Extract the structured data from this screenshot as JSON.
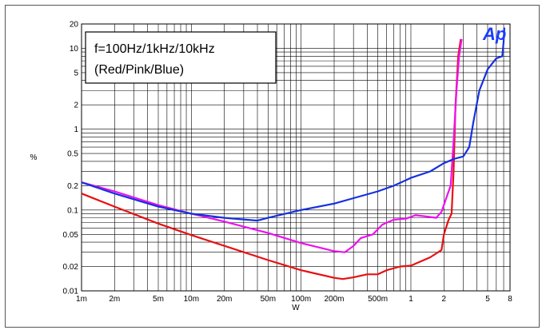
{
  "chart_data": {
    "type": "line",
    "xlabel": "W",
    "ylabel": "%",
    "xscale": "log",
    "yscale": "log",
    "xlim": [
      0.001,
      8
    ],
    "ylim": [
      0.01,
      20
    ],
    "x_ticks": [
      {
        "v": 0.001,
        "label": "1m"
      },
      {
        "v": 0.002,
        "label": "2m"
      },
      {
        "v": 0.005,
        "label": "5m"
      },
      {
        "v": 0.01,
        "label": "10m"
      },
      {
        "v": 0.02,
        "label": "20m"
      },
      {
        "v": 0.05,
        "label": "50m"
      },
      {
        "v": 0.1,
        "label": "100m"
      },
      {
        "v": 0.2,
        "label": "200m"
      },
      {
        "v": 0.5,
        "label": "500m"
      },
      {
        "v": 1,
        "label": "1"
      },
      {
        "v": 2,
        "label": "2"
      },
      {
        "v": 5,
        "label": "5"
      },
      {
        "v": 8,
        "label": "8"
      }
    ],
    "y_ticks": [
      {
        "v": 0.01,
        "label": "0.01"
      },
      {
        "v": 0.02,
        "label": "0.02"
      },
      {
        "v": 0.05,
        "label": "0.05"
      },
      {
        "v": 0.1,
        "label": "0.1"
      },
      {
        "v": 0.2,
        "label": "0.2"
      },
      {
        "v": 0.5,
        "label": "0.5"
      },
      {
        "v": 1,
        "label": "1"
      },
      {
        "v": 2,
        "label": "2"
      },
      {
        "v": 5,
        "label": "5"
      },
      {
        "v": 10,
        "label": "10"
      },
      {
        "v": 20,
        "label": "20"
      }
    ],
    "annotation": [
      "f=100Hz/1kHz/10kHz",
      "(Red/Pink/Blue)"
    ],
    "logo": "Ap",
    "grid": true,
    "series": [
      {
        "color": "#e81010",
        "points": [
          [
            0.001,
            0.16
          ],
          [
            0.002,
            0.11
          ],
          [
            0.005,
            0.068
          ],
          [
            0.01,
            0.049
          ],
          [
            0.02,
            0.036
          ],
          [
            0.05,
            0.024
          ],
          [
            0.1,
            0.018
          ],
          [
            0.2,
            0.0145
          ],
          [
            0.24,
            0.014
          ],
          [
            0.3,
            0.0147
          ],
          [
            0.4,
            0.016
          ],
          [
            0.5,
            0.016
          ],
          [
            0.6,
            0.018
          ],
          [
            0.8,
            0.02
          ],
          [
            1.0,
            0.0205
          ],
          [
            1.5,
            0.026
          ],
          [
            1.9,
            0.032
          ],
          [
            2.0,
            0.05
          ],
          [
            2.2,
            0.075
          ],
          [
            2.35,
            0.09
          ],
          [
            2.45,
            0.3
          ],
          [
            2.55,
            2.0
          ],
          [
            2.7,
            8.0
          ],
          [
            2.85,
            13.0
          ]
        ]
      },
      {
        "color": "#ee10ee",
        "points": [
          [
            0.001,
            0.22
          ],
          [
            0.002,
            0.17
          ],
          [
            0.005,
            0.115
          ],
          [
            0.01,
            0.09
          ],
          [
            0.02,
            0.072
          ],
          [
            0.05,
            0.052
          ],
          [
            0.1,
            0.039
          ],
          [
            0.2,
            0.031
          ],
          [
            0.25,
            0.03
          ],
          [
            0.3,
            0.036
          ],
          [
            0.35,
            0.045
          ],
          [
            0.45,
            0.05
          ],
          [
            0.55,
            0.066
          ],
          [
            0.7,
            0.076
          ],
          [
            0.9,
            0.078
          ],
          [
            1.1,
            0.086
          ],
          [
            1.4,
            0.083
          ],
          [
            1.7,
            0.08
          ],
          [
            1.9,
            0.095
          ],
          [
            2.1,
            0.14
          ],
          [
            2.3,
            0.2
          ],
          [
            2.45,
            0.7
          ],
          [
            2.6,
            3.0
          ],
          [
            2.75,
            8.0
          ],
          [
            2.9,
            13.0
          ]
        ]
      },
      {
        "color": "#1530e0",
        "points": [
          [
            0.001,
            0.22
          ],
          [
            0.002,
            0.16
          ],
          [
            0.005,
            0.11
          ],
          [
            0.01,
            0.09
          ],
          [
            0.02,
            0.08
          ],
          [
            0.04,
            0.074
          ],
          [
            0.05,
            0.08
          ],
          [
            0.1,
            0.1
          ],
          [
            0.2,
            0.12
          ],
          [
            0.3,
            0.14
          ],
          [
            0.5,
            0.17
          ],
          [
            0.7,
            0.2
          ],
          [
            1.0,
            0.25
          ],
          [
            1.5,
            0.3
          ],
          [
            2.0,
            0.38
          ],
          [
            2.5,
            0.43
          ],
          [
            3.0,
            0.46
          ],
          [
            3.4,
            0.6
          ],
          [
            3.7,
            1.2
          ],
          [
            4.2,
            3.0
          ],
          [
            5.0,
            5.5
          ],
          [
            6.0,
            7.5
          ],
          [
            6.8,
            8.0
          ],
          [
            7.0,
            12.0
          ],
          [
            7.1,
            18.0
          ]
        ]
      }
    ]
  }
}
